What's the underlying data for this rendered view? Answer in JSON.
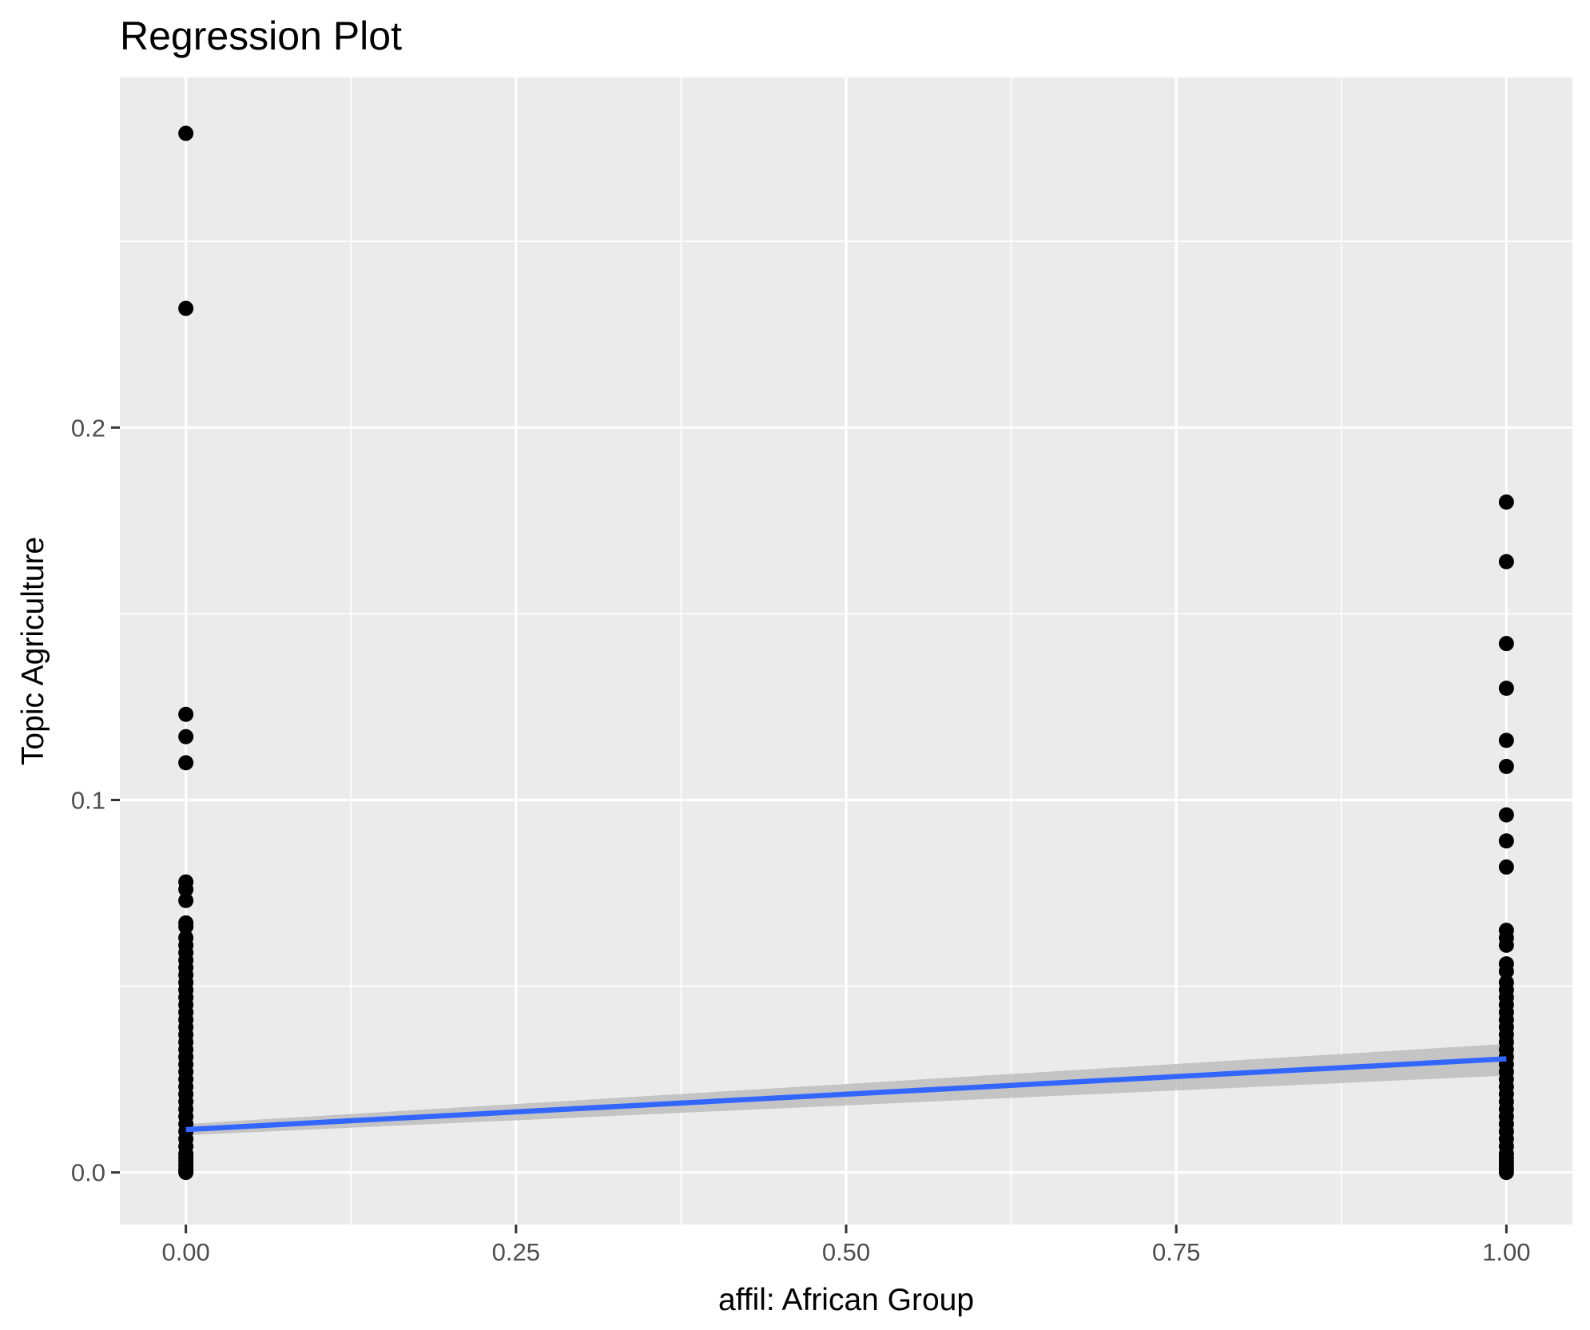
{
  "chart_data": {
    "type": "scatter",
    "title": "Regression Plot",
    "xlabel": "affil: African Group",
    "ylabel": "Topic Agriculture",
    "xlim": [
      -0.05,
      1.05
    ],
    "ylim": [
      -0.014,
      0.294
    ],
    "x_ticks": [
      0.0,
      0.25,
      0.5,
      0.75,
      1.0
    ],
    "x_tick_labels": [
      "0.00",
      "0.25",
      "0.50",
      "0.75",
      "1.00"
    ],
    "y_ticks": [
      0.0,
      0.1,
      0.2
    ],
    "y_tick_labels": [
      "0.0",
      "0.1",
      "0.2"
    ],
    "grid": true,
    "points": {
      "x0": [
        0.279,
        0.232,
        0.123,
        0.117,
        0.11,
        0.078,
        0.076,
        0.073,
        0.067,
        0.066,
        0.063,
        0.061,
        0.059,
        0.057,
        0.055,
        0.053,
        0.051,
        0.049,
        0.047,
        0.045,
        0.043,
        0.041,
        0.039,
        0.037,
        0.035,
        0.033,
        0.031,
        0.029,
        0.027,
        0.025,
        0.023,
        0.021,
        0.019,
        0.017,
        0.015,
        0.013,
        0.011,
        0.009,
        0.007,
        0.005,
        0.004,
        0.003,
        0.002,
        0.001,
        0.0005,
        0.0
      ],
      "x1": [
        0.18,
        0.164,
        0.142,
        0.13,
        0.116,
        0.109,
        0.096,
        0.089,
        0.082,
        0.065,
        0.063,
        0.061,
        0.056,
        0.054,
        0.051,
        0.049,
        0.047,
        0.045,
        0.043,
        0.041,
        0.039,
        0.037,
        0.035,
        0.033,
        0.031,
        0.029,
        0.027,
        0.025,
        0.023,
        0.021,
        0.019,
        0.017,
        0.015,
        0.013,
        0.011,
        0.009,
        0.007,
        0.005,
        0.004,
        0.003,
        0.002,
        0.001,
        0.0
      ]
    },
    "regression": {
      "x": [
        0.0,
        1.0
      ],
      "y": [
        0.0115,
        0.0305
      ],
      "ci_lower": [
        0.01,
        0.026
      ],
      "ci_upper": [
        0.013,
        0.0345
      ]
    },
    "colors": {
      "panel": "#ebebeb",
      "grid": "#ffffff",
      "points": "#000000",
      "line": "#3366ff",
      "ribbon": "#bdbdbd"
    }
  }
}
